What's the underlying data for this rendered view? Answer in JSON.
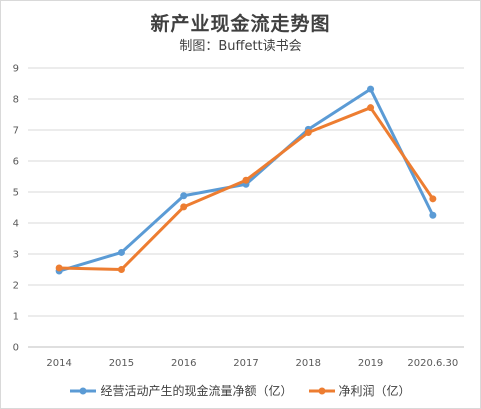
{
  "title": "新产业现金流走势图",
  "subtitle": "制图：Buffett读书会",
  "chart_data": {
    "type": "line",
    "categories": [
      "2014",
      "2015",
      "2016",
      "2017",
      "2018",
      "2019",
      "2020.6.30"
    ],
    "series": [
      {
        "name": "经营活动产生的现金流量净额（亿）",
        "color": "#5b9bd5",
        "values": [
          2.45,
          3.05,
          4.88,
          5.25,
          7.02,
          8.32,
          4.25
        ]
      },
      {
        "name": "净利润（亿）",
        "color": "#ed7d31",
        "values": [
          2.55,
          2.5,
          4.52,
          5.38,
          6.92,
          7.72,
          4.78
        ]
      }
    ],
    "ylim": [
      0,
      9
    ],
    "yticks": [
      0,
      1,
      2,
      3,
      4,
      5,
      6,
      7,
      8,
      9
    ],
    "grid": true,
    "legend": "bottom"
  }
}
